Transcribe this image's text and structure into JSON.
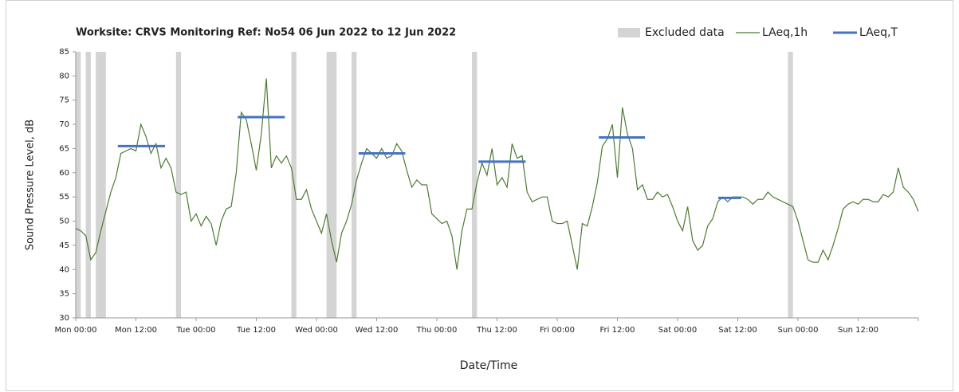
{
  "chart_data": {
    "type": "line",
    "title": "Worksite: CRVS    Monitoring Ref: No54    06 Jun 2022 to 12 Jun 2022",
    "ylabel": "Sound Pressure Level, dB",
    "xlabel": "Date/Time",
    "xlim": [
      0,
      168
    ],
    "ylim": [
      30,
      85
    ],
    "yticks": [
      30,
      35,
      40,
      45,
      50,
      55,
      60,
      65,
      70,
      75,
      80,
      85
    ],
    "xticks": [
      {
        "value": 0,
        "label": "Mon 00:00"
      },
      {
        "value": 12,
        "label": "Mon 12:00"
      },
      {
        "value": 24,
        "label": "Tue 00:00"
      },
      {
        "value": 36,
        "label": "Tue 12:00"
      },
      {
        "value": 48,
        "label": "Wed 00:00"
      },
      {
        "value": 60,
        "label": "Wed 12:00"
      },
      {
        "value": 72,
        "label": "Thu 00:00"
      },
      {
        "value": 84,
        "label": "Thu 12:00"
      },
      {
        "value": 96,
        "label": "Fri 00:00"
      },
      {
        "value": 108,
        "label": "Fri 12:00"
      },
      {
        "value": 120,
        "label": "Sat 00:00"
      },
      {
        "value": 132,
        "label": "Sat 12:00"
      },
      {
        "value": 144,
        "label": "Sun 00:00"
      },
      {
        "value": 156,
        "label": "Sun 12:00"
      },
      {
        "value": 168,
        "label": ""
      }
    ],
    "excluded": {
      "name": "Excluded data",
      "color": "#d4d4d4",
      "ranges": [
        [
          0,
          1
        ],
        [
          2,
          3
        ],
        [
          4,
          6
        ],
        [
          20,
          21
        ],
        [
          43,
          44
        ],
        [
          50,
          52
        ],
        [
          55,
          56
        ],
        [
          79,
          80
        ],
        [
          142,
          143
        ]
      ]
    },
    "series": [
      {
        "name": "LAeq,1h",
        "color": "#4e7a33",
        "x": [
          0,
          1,
          2,
          3,
          4,
          5,
          6,
          7,
          8,
          9,
          10,
          11,
          12,
          13,
          14,
          15,
          16,
          17,
          18,
          19,
          20,
          21,
          22,
          23,
          24,
          25,
          26,
          27,
          28,
          29,
          30,
          31,
          32,
          33,
          34,
          35,
          36,
          37,
          38,
          39,
          40,
          41,
          42,
          43,
          44,
          45,
          46,
          47,
          48,
          49,
          50,
          51,
          52,
          53,
          54,
          55,
          56,
          57,
          58,
          59,
          60,
          61,
          62,
          63,
          64,
          65,
          66,
          67,
          68,
          69,
          70,
          71,
          72,
          73,
          74,
          75,
          76,
          77,
          78,
          79,
          80,
          81,
          82,
          83,
          84,
          85,
          86,
          87,
          88,
          89,
          90,
          91,
          92,
          93,
          94,
          95,
          96,
          97,
          98,
          99,
          100,
          101,
          102,
          103,
          104,
          105,
          106,
          107,
          108,
          109,
          110,
          111,
          112,
          113,
          114,
          115,
          116,
          117,
          118,
          119,
          120,
          121,
          122,
          123,
          124,
          125,
          126,
          127,
          128,
          129,
          130,
          131,
          132,
          133,
          134,
          135,
          136,
          137,
          138,
          139,
          140,
          141,
          142,
          143,
          144,
          145,
          146,
          147,
          148,
          149,
          150,
          151,
          152,
          153,
          154,
          155,
          156,
          157,
          158,
          159,
          160,
          161,
          162,
          163,
          164,
          165,
          166,
          167,
          168
        ],
        "values": [
          48.5,
          48,
          47,
          42,
          43.5,
          48,
          52,
          56,
          59,
          64,
          64.5,
          65,
          64.5,
          70,
          67.5,
          64,
          66,
          61,
          63,
          61,
          56,
          55.5,
          56,
          50,
          51.5,
          49,
          51,
          49.5,
          45,
          50,
          52.5,
          53,
          60,
          72.5,
          71,
          66,
          60.5,
          68,
          79.5,
          61,
          63.5,
          62,
          63.5,
          61,
          54.5,
          54.5,
          56.5,
          52.5,
          50,
          47.5,
          51.5,
          46,
          41.5,
          47.5,
          50,
          53.5,
          58.5,
          62,
          65,
          64,
          63,
          65,
          63,
          63.5,
          66,
          64.5,
          60.5,
          57,
          58.5,
          57.5,
          57.5,
          51.5,
          50.5,
          49.5,
          50,
          47,
          40,
          48,
          52.5,
          52.5,
          58,
          62,
          59.5,
          65,
          57.5,
          59,
          57,
          66,
          63,
          63.5,
          56,
          54,
          54.5,
          55,
          55,
          50,
          49.5,
          49.5,
          50,
          45,
          40,
          49.5,
          49,
          53,
          58,
          65.5,
          67,
          70,
          59,
          73.5,
          68,
          65,
          56.5,
          57.5,
          54.5,
          54.5,
          56,
          55,
          55.5,
          53,
          50,
          48,
          53,
          46,
          44,
          45,
          49,
          50.5,
          54,
          55,
          54,
          55,
          55,
          55,
          54.5,
          53.5,
          54.5,
          54.5,
          56,
          55,
          54.5,
          54,
          53.5,
          53,
          50,
          46,
          42,
          41.5,
          41.5,
          44,
          42,
          45,
          48.5,
          52.5,
          53.5,
          54,
          53.5,
          54.5,
          54.5,
          54,
          54,
          55.5,
          55,
          56,
          61,
          57,
          56,
          54.5,
          52
        ]
      },
      {
        "name": "LAeq,T",
        "color": "#4472c4",
        "periods": [
          {
            "start": 8.4,
            "end": 17.8,
            "value": 65.5
          },
          {
            "start": 32.3,
            "end": 41.7,
            "value": 71.5
          },
          {
            "start": 56.4,
            "end": 65.7,
            "value": 64
          },
          {
            "start": 80.3,
            "end": 89.7,
            "value": 62.3
          },
          {
            "start": 104.3,
            "end": 113.5,
            "value": 67.3
          },
          {
            "start": 128.1,
            "end": 132.7,
            "value": 54.8
          }
        ]
      }
    ]
  }
}
